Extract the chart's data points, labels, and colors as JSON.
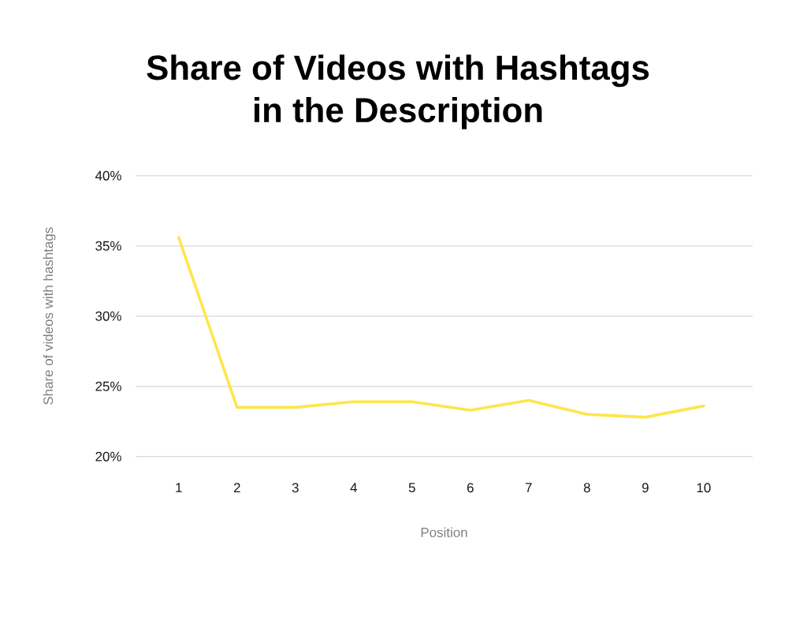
{
  "chart_data": {
    "type": "line",
    "title": "Share of Videos with Hashtags in the Description",
    "xlabel": "Position",
    "ylabel": "Share of videos with hashtags",
    "categories": [
      "1",
      "2",
      "3",
      "4",
      "5",
      "6",
      "7",
      "8",
      "9",
      "10"
    ],
    "series": [
      {
        "color": "#fde64b",
        "values": [
          35.6,
          23.5,
          23.5,
          23.9,
          23.9,
          23.3,
          24.0,
          23.0,
          22.8,
          23.6
        ]
      }
    ],
    "ylim": [
      20,
      40
    ],
    "yticks": [
      {
        "value": 20,
        "label": "20%"
      },
      {
        "value": 25,
        "label": "25%"
      },
      {
        "value": 30,
        "label": "30%"
      },
      {
        "value": 35,
        "label": "35%"
      },
      {
        "value": 40,
        "label": "40%"
      }
    ],
    "grid": "y",
    "marker": "none",
    "line_style": "solid"
  }
}
